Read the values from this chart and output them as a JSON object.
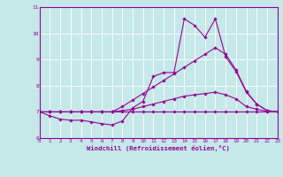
{
  "xlabel": "Windchill (Refroidissement éolien,°C)",
  "xlim": [
    0,
    23
  ],
  "ylim": [
    6,
    11
  ],
  "yticks": [
    6,
    7,
    8,
    9,
    10,
    11
  ],
  "xticks": [
    0,
    1,
    2,
    3,
    4,
    5,
    6,
    7,
    8,
    9,
    10,
    11,
    12,
    13,
    14,
    15,
    16,
    17,
    18,
    19,
    20,
    21,
    22,
    23
  ],
  "bg_color": "#c5e8e8",
  "line_color": "#990099",
  "grid_color": "#ffffff",
  "lines": [
    {
      "x": [
        0,
        1,
        2,
        3,
        4,
        5,
        6,
        7,
        8,
        9,
        10,
        11,
        12,
        13,
        14,
        15,
        16,
        17,
        18,
        19,
        20,
        21,
        22,
        23
      ],
      "y": [
        7.0,
        6.85,
        6.72,
        6.68,
        6.68,
        6.62,
        6.55,
        6.5,
        6.65,
        7.15,
        7.4,
        8.35,
        8.5,
        8.5,
        10.55,
        10.3,
        9.85,
        10.55,
        9.1,
        8.55,
        7.75,
        7.3,
        7.05,
        7.0
      ]
    },
    {
      "x": [
        0,
        1,
        2,
        3,
        4,
        5,
        6,
        7,
        8,
        9,
        10,
        11,
        12,
        13,
        14,
        15,
        16,
        17,
        18,
        19,
        20,
        21,
        22,
        23
      ],
      "y": [
        7.0,
        7.0,
        7.0,
        7.0,
        7.0,
        7.0,
        7.0,
        7.0,
        7.2,
        7.45,
        7.7,
        7.95,
        8.2,
        8.45,
        8.7,
        8.95,
        9.2,
        9.45,
        9.2,
        8.6,
        7.78,
        7.3,
        7.05,
        7.0
      ]
    },
    {
      "x": [
        0,
        1,
        2,
        3,
        4,
        5,
        6,
        7,
        8,
        9,
        10,
        11,
        12,
        13,
        14,
        15,
        16,
        17,
        18,
        19,
        20,
        21,
        22,
        23
      ],
      "y": [
        7.0,
        7.0,
        7.0,
        7.0,
        7.0,
        7.0,
        7.0,
        7.0,
        7.05,
        7.1,
        7.2,
        7.3,
        7.4,
        7.5,
        7.6,
        7.65,
        7.7,
        7.75,
        7.65,
        7.5,
        7.2,
        7.1,
        7.02,
        7.0
      ]
    },
    {
      "x": [
        0,
        1,
        2,
        3,
        4,
        5,
        6,
        7,
        8,
        9,
        10,
        11,
        12,
        13,
        14,
        15,
        16,
        17,
        18,
        19,
        20,
        21,
        22,
        23
      ],
      "y": [
        7.0,
        7.0,
        7.0,
        7.0,
        7.0,
        7.0,
        7.0,
        7.0,
        7.0,
        7.0,
        7.0,
        7.0,
        7.0,
        7.0,
        7.0,
        7.0,
        7.0,
        7.0,
        7.0,
        7.0,
        7.0,
        7.0,
        7.0,
        7.0
      ]
    }
  ],
  "marker": "D",
  "markersize": 1.8,
  "linewidth": 0.8,
  "tick_fontsize": 4.2,
  "xlabel_fontsize": 5.2
}
